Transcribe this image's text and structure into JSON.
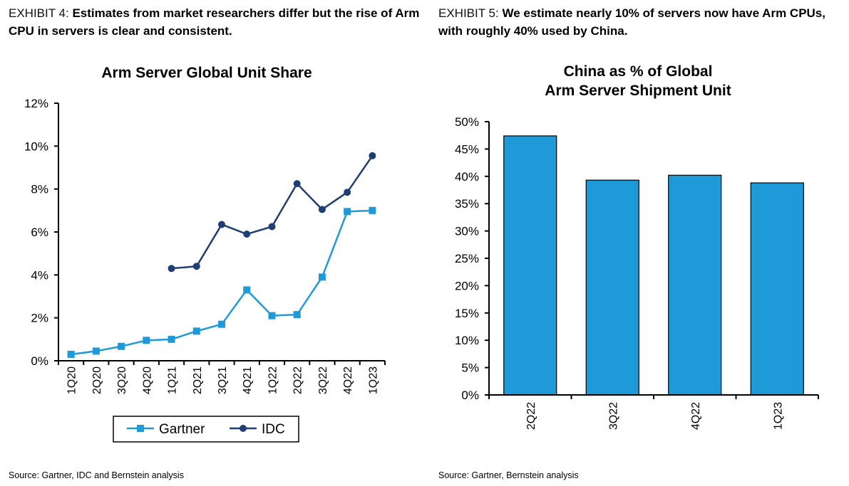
{
  "exhibits": [
    {
      "label": "EXHIBIT 4: ",
      "title": "Estimates from market researchers differ but the rise of Arm CPU in servers is clear and consistent.",
      "source": "Source: Gartner, IDC and Bernstein analysis"
    },
    {
      "label": "EXHIBIT 5: ",
      "title": "We estimate nearly 10% of servers now have Arm CPUs, with roughly 40% used by China.",
      "source": "Source: Gartner, Bernstein analysis"
    }
  ],
  "chart_data": [
    {
      "type": "line",
      "title": "Arm Server Global Unit Share",
      "categories": [
        "1Q20",
        "2Q20",
        "3Q20",
        "4Q20",
        "1Q21",
        "2Q21",
        "3Q21",
        "4Q21",
        "1Q22",
        "2Q22",
        "3Q22",
        "4Q22",
        "1Q23"
      ],
      "series": [
        {
          "name": "Gartner",
          "color": "#1f9ad8",
          "marker": "square",
          "values": [
            0.3,
            0.45,
            0.67,
            0.95,
            1.0,
            1.38,
            1.7,
            3.3,
            2.1,
            2.15,
            3.9,
            6.95,
            7.0
          ]
        },
        {
          "name": "IDC",
          "color": "#1f3f74",
          "marker": "circle",
          "values": [
            null,
            null,
            null,
            null,
            4.3,
            4.4,
            6.35,
            5.9,
            6.25,
            8.25,
            7.05,
            7.85,
            9.55
          ]
        }
      ],
      "yticks": [
        "0%",
        "2%",
        "4%",
        "6%",
        "8%",
        "10%",
        "12%"
      ],
      "ylim": [
        0,
        12
      ],
      "legend": "bottom",
      "grid": false
    },
    {
      "type": "bar",
      "title": "China as % of Global Arm Server Shipment Unit",
      "categories": [
        "2Q22",
        "3Q22",
        "4Q22",
        "1Q23"
      ],
      "values": [
        47.4,
        39.3,
        40.2,
        38.8
      ],
      "color": "#1f9ad8",
      "yticks": [
        "0%",
        "5%",
        "10%",
        "15%",
        "20%",
        "25%",
        "30%",
        "35%",
        "40%",
        "45%",
        "50%"
      ],
      "ylim": [
        0,
        50
      ],
      "grid": false
    }
  ]
}
